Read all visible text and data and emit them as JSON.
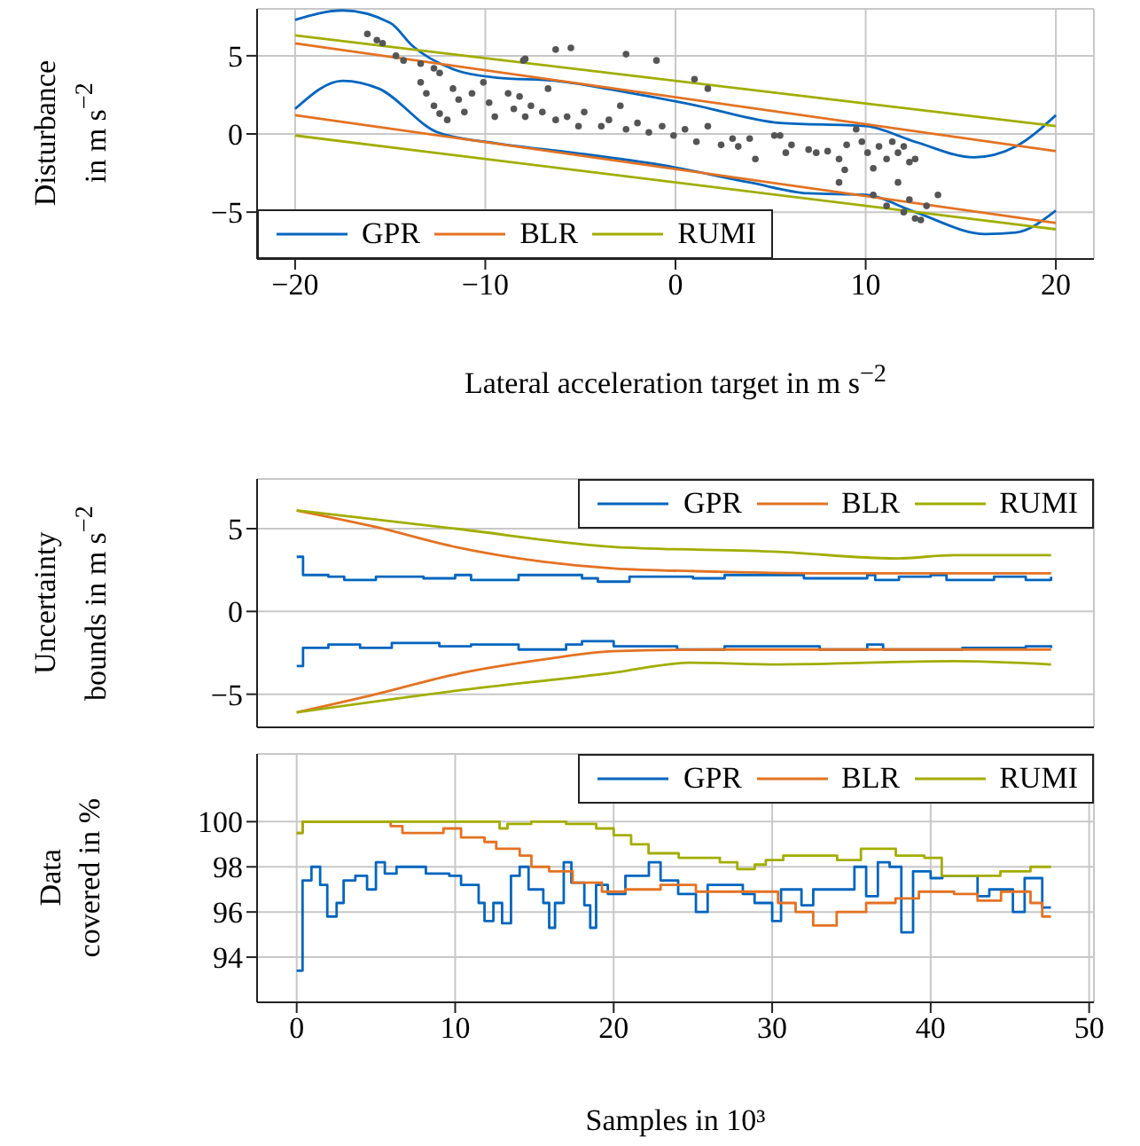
{
  "chart_data": [
    {
      "type": "line",
      "xlabel": "Lateral acceleration target in m s$^{−2}$",
      "ylabel": "Disturbance\nin m s$^{−2}$",
      "xlim": [
        -22,
        22
      ],
      "xticks": [
        -20,
        -10,
        0,
        10,
        20
      ],
      "ylim": [
        -8,
        8
      ],
      "yticks": [
        -5,
        0,
        5
      ],
      "grid": true,
      "legend": "bottom left",
      "series": [
        {
          "name": "GPR",
          "color": "#0065bd",
          "x": [
            -20,
            -17.5,
            -15,
            -13.8,
            -11.6,
            -9.4,
            -6.3,
            -2.3,
            0.8,
            5.5,
            10,
            12.6,
            15.7,
            17.9,
            20
          ],
          "values": [
            7.3,
            7.9,
            7.1,
            5.6,
            4.1,
            3.6,
            3.4,
            2.6,
            1.9,
            0.7,
            0.5,
            -0.5,
            -1.5,
            -0.8,
            1.2
          ]
        },
        {
          "color": "#0065bd",
          "x": [
            -20,
            -17.5,
            -15.6,
            -12.5,
            -9.4,
            -5.4,
            -0.7,
            3.9,
            7,
            10,
            12.6,
            16.3,
            17.9,
            20
          ],
          "values": [
            1.6,
            3.4,
            2.9,
            0.1,
            -0.6,
            -1.2,
            -2.0,
            -3.1,
            -3.8,
            -3.9,
            -5.0,
            -6.4,
            -6.3,
            -4.9
          ]
        },
        {
          "name": "BLR",
          "color": "#e37222",
          "x": [
            -20,
            20
          ],
          "values": [
            5.8,
            -1.1
          ]
        },
        {
          "color": "#e37222",
          "x": [
            -20,
            20
          ],
          "values": [
            1.2,
            -5.7
          ]
        },
        {
          "name": "RUMI",
          "color": "#a2ad00",
          "x": [
            -20,
            20
          ],
          "values": [
            6.3,
            0.5
          ]
        },
        {
          "color": "#a2ad00",
          "x": [
            -20,
            20
          ],
          "values": [
            -0.1,
            -6.1
          ]
        },
        {
          "type": "scatter",
          "marker": "circle",
          "color": "#555555",
          "x": [
            -16.2,
            -15.7,
            -15.4,
            -14.7,
            -14.3,
            -13.4,
            -12.7,
            -12.4,
            -13.4,
            -13.1,
            -12.7,
            -12.4,
            -12.0,
            -11.7,
            -11.4,
            -11.1,
            -10.7,
            -10.1,
            -9.8,
            -9.5,
            -8.8,
            -8.5,
            -8.2,
            -7.9,
            -7.6,
            -7.0,
            -6.7,
            -6.3,
            -5.7,
            -5.1,
            -4.8,
            -3.9,
            -3.5,
            -2.9,
            -2.6,
            -2.0,
            -1.4,
            -0.7,
            -0.1,
            0.5,
            1.1,
            1.7,
            2.4,
            3.0,
            3.3,
            3.9,
            4.2,
            5.5,
            5.8,
            7.0,
            8.0,
            8.6,
            8.9,
            8.6,
            9.0,
            9.5,
            9.8,
            10.1,
            10.4,
            10.7,
            11.1,
            11.4,
            11.7,
            12.0,
            12.3,
            12.6,
            11.7,
            12.3,
            12.6,
            12.9,
            12.0,
            13.2,
            13.8,
            10.4,
            11.1,
            -8.0,
            -7.9,
            -6.3,
            -5.5,
            -2.6,
            -1.0,
            1.0,
            1.7,
            5.2,
            6.1,
            7.4
          ],
          "values": [
            6.4,
            6.0,
            5.8,
            5.0,
            4.7,
            4.5,
            4.2,
            3.9,
            3.3,
            2.6,
            1.8,
            1.3,
            0.9,
            2.9,
            2.2,
            1.4,
            2.6,
            3.3,
            2.0,
            1.1,
            2.6,
            1.6,
            2.4,
            1.1,
            1.8,
            1.4,
            2.9,
            0.9,
            1.1,
            0.5,
            1.4,
            0.5,
            0.9,
            1.8,
            0.3,
            0.7,
            0.1,
            0.5,
            -0.1,
            0.3,
            -0.5,
            0.5,
            -0.7,
            -0.3,
            -0.8,
            -0.3,
            -1.6,
            -0.1,
            -1.2,
            -1.0,
            -1.1,
            -1.6,
            -2.3,
            -3.1,
            -0.7,
            0.3,
            -0.5,
            -1.2,
            -2.2,
            -0.8,
            -1.6,
            -0.5,
            -1.2,
            -0.8,
            -1.8,
            -1.6,
            -3.1,
            -4.2,
            -5.4,
            -5.5,
            -5.0,
            -4.6,
            -3.9,
            -3.9,
            -4.6,
            4.7,
            4.8,
            5.4,
            5.5,
            5.1,
            4.7,
            3.5,
            2.9,
            -0.1,
            -0.7,
            -1.2
          ]
        }
      ]
    },
    {
      "type": "line",
      "ylabel": "Uncertainty\nbounds in m s$^{−2}$",
      "xlim": [
        -2.5,
        50.3
      ],
      "xticks": [
        0,
        10,
        20,
        30,
        40,
        50
      ],
      "ylim": [
        -7,
        8
      ],
      "yticks": [
        -5,
        0,
        5
      ],
      "tick_labels": "y",
      "grid": true,
      "legend": "top right",
      "series": [
        {
          "type": "step",
          "name": "GPR",
          "color": "#0065bd",
          "x": [
            0,
            0.4,
            2,
            3,
            5,
            8,
            10,
            11,
            14,
            18,
            19,
            21,
            25,
            27,
            32,
            36,
            36.5,
            38,
            40,
            41,
            44,
            46,
            47.6
          ],
          "values": [
            3.3,
            2.2,
            2.1,
            1.9,
            2.1,
            2.0,
            2.2,
            1.9,
            2.2,
            2.0,
            1.8,
            2.1,
            2.0,
            2.2,
            2.0,
            2.2,
            1.9,
            2.1,
            2.2,
            1.9,
            2.1,
            1.9,
            2.1
          ]
        },
        {
          "type": "step",
          "color": "#0065bd",
          "x": [
            0,
            0.4,
            2,
            4,
            6,
            9,
            11,
            14,
            17,
            18,
            20,
            24,
            27,
            33,
            36,
            37,
            42,
            46,
            47.6
          ],
          "values": [
            -3.3,
            -2.2,
            -2.0,
            -2.2,
            -1.9,
            -2.1,
            -2.0,
            -2.3,
            -2.0,
            -1.8,
            -2.1,
            -2.3,
            -2.1,
            -2.3,
            -2.0,
            -2.3,
            -2.2,
            -2.1,
            -2.2
          ]
        },
        {
          "name": "BLR",
          "color": "#e37222",
          "x": [
            0,
            5,
            10,
            15.6,
            20,
            26.7,
            35,
            47.6
          ],
          "values": [
            6.1,
            5.1,
            3.9,
            3.0,
            2.6,
            2.4,
            2.3,
            2.3
          ]
        },
        {
          "color": "#e37222",
          "x": [
            0,
            5,
            10,
            15.6,
            20,
            26.7,
            35,
            47.6
          ],
          "values": [
            -6.1,
            -5.0,
            -3.8,
            -2.9,
            -2.4,
            -2.3,
            -2.3,
            -2.3
          ]
        },
        {
          "name": "RUMI",
          "color": "#a2ad00",
          "x": [
            0,
            10,
            20,
            30.4,
            37.8,
            41.5,
            47.6
          ],
          "values": [
            6.1,
            5.0,
            3.9,
            3.6,
            3.2,
            3.4,
            3.4
          ]
        },
        {
          "color": "#a2ad00",
          "x": [
            0,
            10,
            20,
            24.8,
            30.4,
            41.5,
            47.6
          ],
          "values": [
            -6.1,
            -4.8,
            -3.7,
            -3.1,
            -3.2,
            -3.0,
            -3.2
          ]
        }
      ]
    },
    {
      "type": "step",
      "xlabel": "Samples in 10³",
      "ylabel": "Data\ncovered in %",
      "xlim": [
        -2.5,
        50.3
      ],
      "xticks": [
        0,
        10,
        20,
        30,
        40,
        50
      ],
      "ylim": [
        92,
        103
      ],
      "yticks": [
        94,
        96,
        98,
        100
      ],
      "grid": true,
      "legend": "top right",
      "series": [
        {
          "name": "GPR",
          "color": "#0065bd",
          "x": [
            0,
            0.37,
            0.93,
            1.48,
            1.93,
            2.52,
            2.96,
            3.7,
            4.44,
            5.0,
            5.56,
            6.3,
            8.15,
            9.63,
            10.37,
            11.48,
            11.85,
            12.41,
            12.96,
            13.52,
            14.07,
            14.63,
            15.56,
            15.93,
            16.3,
            16.85,
            17.33,
            18.15,
            18.52,
            18.89,
            19.63,
            20.74,
            22.22,
            22.96,
            24.07,
            25.19,
            25.93,
            28.15,
            28.89,
            30.0,
            30.56,
            31.85,
            32.59,
            35.19,
            35.93,
            36.67,
            37.41,
            38.15,
            38.89,
            40.0,
            40.74,
            42.96,
            43.7,
            45.19,
            45.93,
            47.04,
            47.59
          ],
          "values": [
            93.4,
            97.4,
            98.0,
            97.2,
            95.8,
            96.4,
            97.4,
            97.6,
            97.0,
            98.2,
            97.7,
            98.0,
            97.7,
            97.6,
            97.2,
            96.4,
            95.6,
            96.4,
            95.5,
            97.6,
            98.0,
            97.0,
            96.4,
            95.3,
            96.4,
            98.2,
            97.3,
            96.3,
            95.3,
            97.2,
            96.8,
            97.6,
            98.2,
            97.4,
            96.8,
            96.0,
            97.2,
            96.8,
            96.4,
            95.6,
            97.0,
            96.3,
            97.0,
            98.0,
            96.7,
            98.2,
            98.0,
            95.1,
            97.8,
            97.5,
            97.6,
            96.7,
            97.0,
            96.0,
            97.5,
            96.2,
            96.2
          ]
        },
        {
          "name": "BLR",
          "color": "#e37222",
          "x": [
            0,
            0.37,
            5.93,
            6.67,
            9.26,
            10.37,
            11.85,
            12.59,
            14.07,
            14.81,
            15.93,
            17.41,
            19.26,
            20.74,
            22.96,
            25.19,
            30.37,
            31.48,
            32.59,
            34.07,
            35.93,
            37.78,
            39.26,
            41.48,
            42.96,
            44.44,
            46.3,
            47.04,
            47.59
          ],
          "values": [
            99.5,
            100,
            99.8,
            99.5,
            99.7,
            99.3,
            99.1,
            98.8,
            98.5,
            98.0,
            97.8,
            97.3,
            96.9,
            97.0,
            97.2,
            96.9,
            96.4,
            96.0,
            95.4,
            96.0,
            96.4,
            96.6,
            96.9,
            96.8,
            96.5,
            96.9,
            96.4,
            95.8,
            95.8
          ]
        },
        {
          "name": "RUMI",
          "color": "#a2ad00",
          "x": [
            0,
            0.37,
            12.8,
            13.3,
            14.8,
            17.0,
            18.9,
            20.0,
            21.1,
            22.2,
            24.1,
            26.7,
            27.8,
            28.9,
            29.6,
            30.7,
            34.1,
            35.6,
            37.8,
            39.6,
            40.7,
            44.4,
            46.3,
            47.6
          ],
          "values": [
            99.5,
            100,
            99.7,
            99.9,
            100,
            99.9,
            99.7,
            99.4,
            99.0,
            98.6,
            98.4,
            98.2,
            97.9,
            98.1,
            98.3,
            98.5,
            98.3,
            98.8,
            98.5,
            98.4,
            97.6,
            97.8,
            98.0,
            98.0
          ]
        }
      ]
    }
  ]
}
